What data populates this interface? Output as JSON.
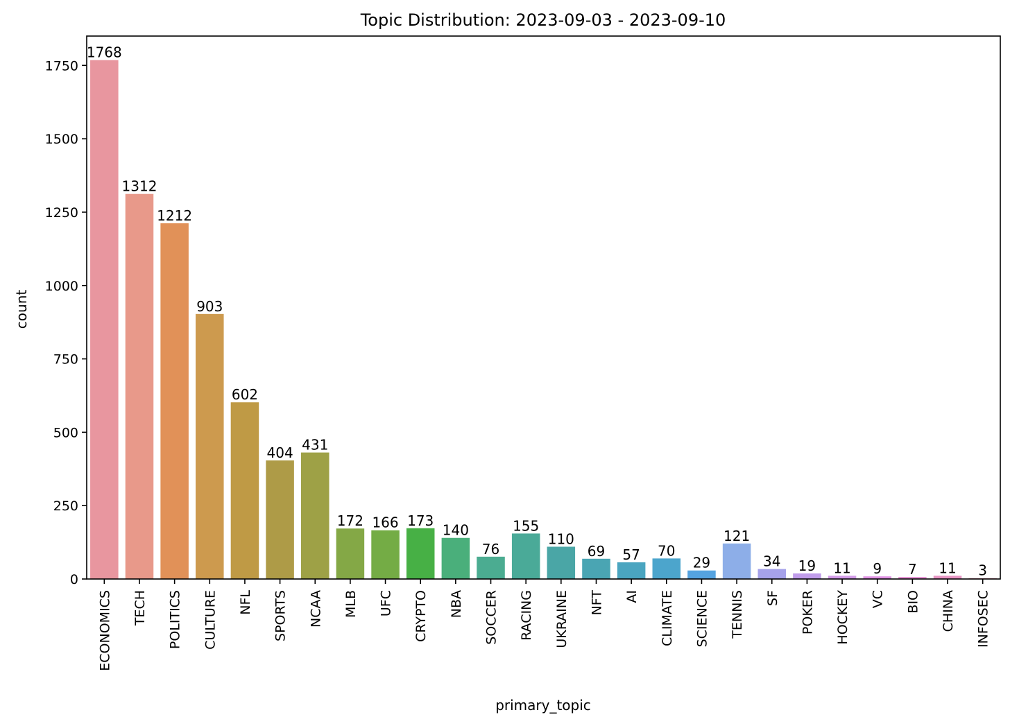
{
  "chart_data": {
    "type": "bar",
    "title": "Topic Distribution: 2023-09-03 - 2023-09-10",
    "xlabel": "primary_topic",
    "ylabel": "count",
    "ylim": [
      0,
      1850
    ],
    "yticks": [
      0,
      250,
      500,
      750,
      1000,
      1250,
      1500,
      1750
    ],
    "grid": false,
    "legend": "none",
    "categories": [
      "ECONOMICS",
      "TECH",
      "POLITICS",
      "CULTURE",
      "NFL",
      "SPORTS",
      "NCAA",
      "MLB",
      "UFC",
      "CRYPTO",
      "NBA",
      "SOCCER",
      "RACING",
      "UKRAINE",
      "NFT",
      "AI",
      "CLIMATE",
      "SCIENCE",
      "TENNIS",
      "SF",
      "POKER",
      "HOCKEY",
      "VC",
      "BIO",
      "CHINA",
      "INFOSEC"
    ],
    "values": [
      1768,
      1312,
      1212,
      903,
      602,
      404,
      431,
      172,
      166,
      173,
      140,
      76,
      155,
      110,
      69,
      57,
      70,
      29,
      121,
      34,
      19,
      11,
      9,
      7,
      11,
      3
    ],
    "colors": [
      "#e8969f",
      "#e8998a",
      "#e19158",
      "#cd9a4e",
      "#bf9a45",
      "#ae9b47",
      "#9ea146",
      "#84a846",
      "#74ac45",
      "#47b045",
      "#4aaf7b",
      "#4bac91",
      "#4aaa98",
      "#4aa6a6",
      "#4aa5b3",
      "#4aa5c0",
      "#4ca5cc",
      "#55a3e0",
      "#8daee8",
      "#a6a2ea",
      "#c09cea",
      "#d39be8",
      "#e194e4",
      "#e694d4",
      "#e895c4",
      "#e894ac"
    ]
  }
}
